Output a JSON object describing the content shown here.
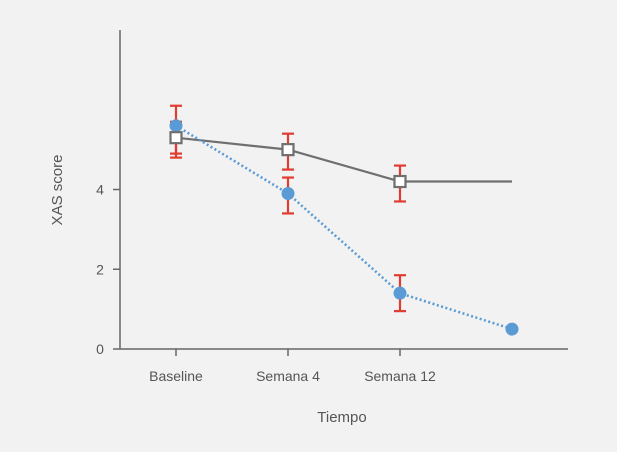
{
  "chart_data": {
    "type": "line",
    "xlabel": "Tiempo",
    "ylabel": "XAS score",
    "x": [
      "Baseline",
      "Semana 4",
      "Semana 12",
      ""
    ],
    "ylim": [
      0,
      8
    ],
    "yticks": [
      0,
      2,
      4
    ],
    "grid": false,
    "series": [
      {
        "marker": "open-square",
        "line_style": "solid",
        "color": "#6f6f6f",
        "values": [
          5.3,
          5.0,
          4.2,
          4.2
        ],
        "error_low": [
          4.9,
          4.5,
          3.7,
          null
        ],
        "error_high": [
          5.7,
          5.4,
          4.6,
          null
        ]
      },
      {
        "marker": "filled-circle",
        "line_style": "dotted",
        "color": "#5b9bd5",
        "values": [
          5.6,
          3.9,
          1.4,
          0.5
        ],
        "error_low": [
          4.8,
          3.4,
          0.95,
          null
        ],
        "error_high": [
          6.1,
          4.3,
          1.85,
          null
        ]
      }
    ],
    "error_bar_color": "#e03c31"
  }
}
